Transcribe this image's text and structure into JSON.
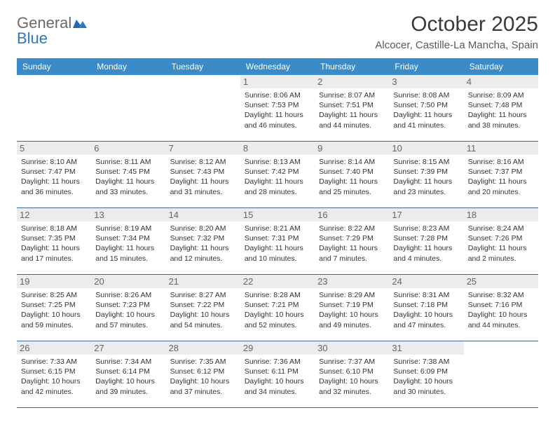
{
  "brand": {
    "text_general": "General",
    "text_blue": "Blue",
    "general_color": "#6a6a6a",
    "blue_color": "#2a7ac0"
  },
  "header": {
    "title": "October 2025",
    "location": "Alcocer, Castille-La Mancha, Spain",
    "title_fontsize": 30,
    "location_fontsize": 15
  },
  "calendar": {
    "header_bg": "#3b8bc9",
    "header_fg": "#ffffff",
    "row_border_color": "#3a6a9a",
    "daynum_bg": "#ececec",
    "daynum_fg": "#666666",
    "body_fontsize": 10.5,
    "day_headers": [
      "Sunday",
      "Monday",
      "Tuesday",
      "Wednesday",
      "Thursday",
      "Friday",
      "Saturday"
    ],
    "weeks": [
      [
        {
          "day": "",
          "sunrise": "",
          "sunset": "",
          "daylight": ""
        },
        {
          "day": "",
          "sunrise": "",
          "sunset": "",
          "daylight": ""
        },
        {
          "day": "",
          "sunrise": "",
          "sunset": "",
          "daylight": ""
        },
        {
          "day": "1",
          "sunrise": "Sunrise: 8:06 AM",
          "sunset": "Sunset: 7:53 PM",
          "daylight": "Daylight: 11 hours and 46 minutes."
        },
        {
          "day": "2",
          "sunrise": "Sunrise: 8:07 AM",
          "sunset": "Sunset: 7:51 PM",
          "daylight": "Daylight: 11 hours and 44 minutes."
        },
        {
          "day": "3",
          "sunrise": "Sunrise: 8:08 AM",
          "sunset": "Sunset: 7:50 PM",
          "daylight": "Daylight: 11 hours and 41 minutes."
        },
        {
          "day": "4",
          "sunrise": "Sunrise: 8:09 AM",
          "sunset": "Sunset: 7:48 PM",
          "daylight": "Daylight: 11 hours and 38 minutes."
        }
      ],
      [
        {
          "day": "5",
          "sunrise": "Sunrise: 8:10 AM",
          "sunset": "Sunset: 7:47 PM",
          "daylight": "Daylight: 11 hours and 36 minutes."
        },
        {
          "day": "6",
          "sunrise": "Sunrise: 8:11 AM",
          "sunset": "Sunset: 7:45 PM",
          "daylight": "Daylight: 11 hours and 33 minutes."
        },
        {
          "day": "7",
          "sunrise": "Sunrise: 8:12 AM",
          "sunset": "Sunset: 7:43 PM",
          "daylight": "Daylight: 11 hours and 31 minutes."
        },
        {
          "day": "8",
          "sunrise": "Sunrise: 8:13 AM",
          "sunset": "Sunset: 7:42 PM",
          "daylight": "Daylight: 11 hours and 28 minutes."
        },
        {
          "day": "9",
          "sunrise": "Sunrise: 8:14 AM",
          "sunset": "Sunset: 7:40 PM",
          "daylight": "Daylight: 11 hours and 25 minutes."
        },
        {
          "day": "10",
          "sunrise": "Sunrise: 8:15 AM",
          "sunset": "Sunset: 7:39 PM",
          "daylight": "Daylight: 11 hours and 23 minutes."
        },
        {
          "day": "11",
          "sunrise": "Sunrise: 8:16 AM",
          "sunset": "Sunset: 7:37 PM",
          "daylight": "Daylight: 11 hours and 20 minutes."
        }
      ],
      [
        {
          "day": "12",
          "sunrise": "Sunrise: 8:18 AM",
          "sunset": "Sunset: 7:35 PM",
          "daylight": "Daylight: 11 hours and 17 minutes."
        },
        {
          "day": "13",
          "sunrise": "Sunrise: 8:19 AM",
          "sunset": "Sunset: 7:34 PM",
          "daylight": "Daylight: 11 hours and 15 minutes."
        },
        {
          "day": "14",
          "sunrise": "Sunrise: 8:20 AM",
          "sunset": "Sunset: 7:32 PM",
          "daylight": "Daylight: 11 hours and 12 minutes."
        },
        {
          "day": "15",
          "sunrise": "Sunrise: 8:21 AM",
          "sunset": "Sunset: 7:31 PM",
          "daylight": "Daylight: 11 hours and 10 minutes."
        },
        {
          "day": "16",
          "sunrise": "Sunrise: 8:22 AM",
          "sunset": "Sunset: 7:29 PM",
          "daylight": "Daylight: 11 hours and 7 minutes."
        },
        {
          "day": "17",
          "sunrise": "Sunrise: 8:23 AM",
          "sunset": "Sunset: 7:28 PM",
          "daylight": "Daylight: 11 hours and 4 minutes."
        },
        {
          "day": "18",
          "sunrise": "Sunrise: 8:24 AM",
          "sunset": "Sunset: 7:26 PM",
          "daylight": "Daylight: 11 hours and 2 minutes."
        }
      ],
      [
        {
          "day": "19",
          "sunrise": "Sunrise: 8:25 AM",
          "sunset": "Sunset: 7:25 PM",
          "daylight": "Daylight: 10 hours and 59 minutes."
        },
        {
          "day": "20",
          "sunrise": "Sunrise: 8:26 AM",
          "sunset": "Sunset: 7:23 PM",
          "daylight": "Daylight: 10 hours and 57 minutes."
        },
        {
          "day": "21",
          "sunrise": "Sunrise: 8:27 AM",
          "sunset": "Sunset: 7:22 PM",
          "daylight": "Daylight: 10 hours and 54 minutes."
        },
        {
          "day": "22",
          "sunrise": "Sunrise: 8:28 AM",
          "sunset": "Sunset: 7:21 PM",
          "daylight": "Daylight: 10 hours and 52 minutes."
        },
        {
          "day": "23",
          "sunrise": "Sunrise: 8:29 AM",
          "sunset": "Sunset: 7:19 PM",
          "daylight": "Daylight: 10 hours and 49 minutes."
        },
        {
          "day": "24",
          "sunrise": "Sunrise: 8:31 AM",
          "sunset": "Sunset: 7:18 PM",
          "daylight": "Daylight: 10 hours and 47 minutes."
        },
        {
          "day": "25",
          "sunrise": "Sunrise: 8:32 AM",
          "sunset": "Sunset: 7:16 PM",
          "daylight": "Daylight: 10 hours and 44 minutes."
        }
      ],
      [
        {
          "day": "26",
          "sunrise": "Sunrise: 7:33 AM",
          "sunset": "Sunset: 6:15 PM",
          "daylight": "Daylight: 10 hours and 42 minutes."
        },
        {
          "day": "27",
          "sunrise": "Sunrise: 7:34 AM",
          "sunset": "Sunset: 6:14 PM",
          "daylight": "Daylight: 10 hours and 39 minutes."
        },
        {
          "day": "28",
          "sunrise": "Sunrise: 7:35 AM",
          "sunset": "Sunset: 6:12 PM",
          "daylight": "Daylight: 10 hours and 37 minutes."
        },
        {
          "day": "29",
          "sunrise": "Sunrise: 7:36 AM",
          "sunset": "Sunset: 6:11 PM",
          "daylight": "Daylight: 10 hours and 34 minutes."
        },
        {
          "day": "30",
          "sunrise": "Sunrise: 7:37 AM",
          "sunset": "Sunset: 6:10 PM",
          "daylight": "Daylight: 10 hours and 32 minutes."
        },
        {
          "day": "31",
          "sunrise": "Sunrise: 7:38 AM",
          "sunset": "Sunset: 6:09 PM",
          "daylight": "Daylight: 10 hours and 30 minutes."
        },
        {
          "day": "",
          "sunrise": "",
          "sunset": "",
          "daylight": ""
        }
      ]
    ]
  }
}
